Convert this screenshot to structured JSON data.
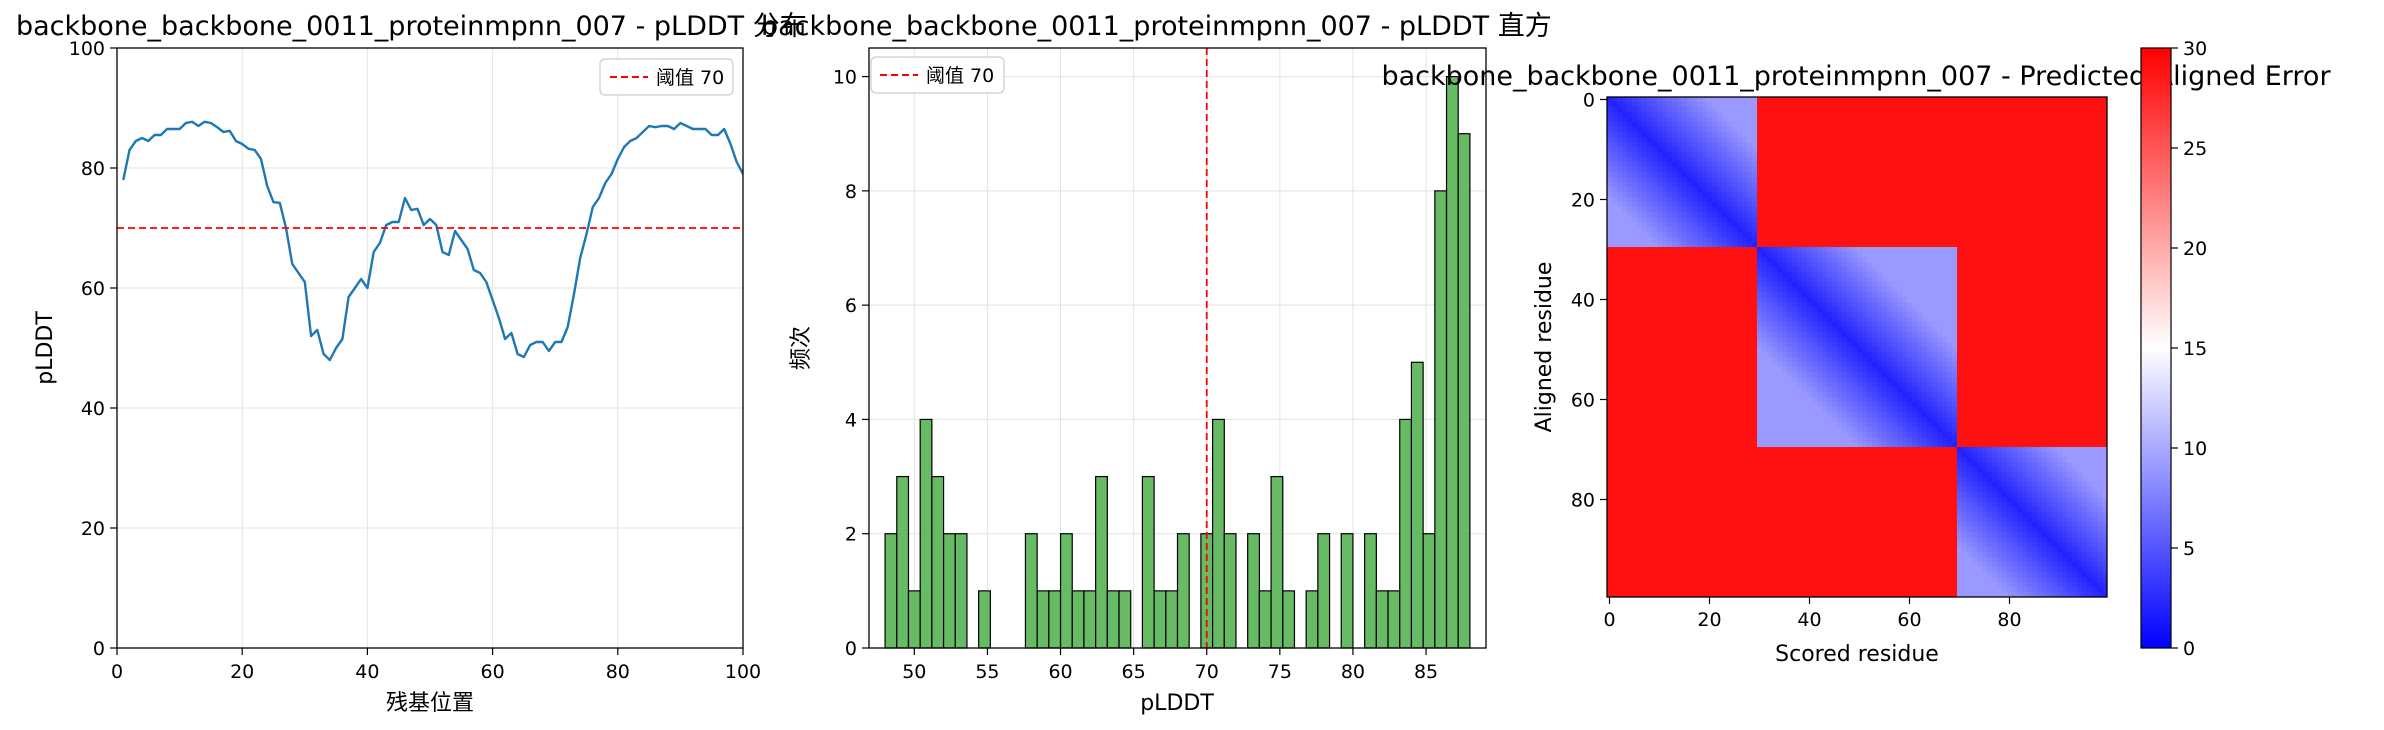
{
  "chart_data": [
    {
      "type": "line",
      "title": "backbone_backbone_0011_proteinmpnn_007 - pLDDT 分布",
      "xlabel": "残基位置",
      "ylabel": "pLDDT",
      "xlim": [
        0,
        100
      ],
      "ylim": [
        0,
        100
      ],
      "x_ticks": [
        0,
        20,
        40,
        60,
        80,
        100
      ],
      "y_ticks": [
        0,
        20,
        40,
        60,
        80,
        100
      ],
      "grid": true,
      "legend_position": "top-right",
      "series": [
        {
          "color": "#1f77b4",
          "x": [
            1,
            2,
            3,
            4,
            5,
            6,
            7,
            8,
            9,
            10,
            11,
            12,
            13,
            14,
            15,
            16,
            17,
            18,
            19,
            20,
            21,
            22,
            23,
            24,
            25,
            26,
            27,
            28,
            29,
            30,
            31,
            32,
            33,
            34,
            35,
            36,
            37,
            38,
            39,
            40,
            41,
            42,
            43,
            44,
            45,
            46,
            47,
            48,
            49,
            50,
            51,
            52,
            53,
            54,
            55,
            56,
            57,
            58,
            59,
            60,
            61,
            62,
            63,
            64,
            65,
            66,
            67,
            68,
            69,
            70,
            71,
            72,
            73,
            74,
            75,
            76,
            77,
            78,
            79,
            80,
            81,
            82,
            83,
            84,
            85,
            86,
            87,
            88,
            89,
            90,
            91,
            92,
            93,
            94,
            95,
            96,
            97,
            98,
            99,
            100
          ],
          "y": [
            78,
            83,
            84.5,
            85,
            84.5,
            85.5,
            85.5,
            86.5,
            86.5,
            86.5,
            87.5,
            87.7,
            87,
            87.7,
            87.5,
            86.8,
            86,
            86.2,
            84.5,
            84,
            83.2,
            83,
            81.5,
            77,
            74.3,
            74.2,
            70,
            64,
            62.5,
            61,
            52,
            53,
            49,
            48,
            50,
            51.5,
            58.5,
            60,
            61.5,
            60,
            66,
            67.5,
            70.5,
            71,
            71,
            75,
            73,
            73.2,
            70.5,
            71.5,
            70.5,
            66,
            65.5,
            69.5,
            68,
            66.5,
            63,
            62.5,
            61,
            58,
            55,
            51.5,
            52.5,
            49,
            48.5,
            50.5,
            51,
            51,
            49.5,
            51,
            51,
            53.5,
            59,
            65,
            69,
            73.5,
            75,
            77.5,
            79,
            81.5,
            83.5,
            84.5,
            85,
            86,
            87,
            86.8,
            87,
            87,
            86.5,
            87.5,
            87,
            86.5,
            86.5,
            86.5,
            85.5,
            85.5,
            86.5,
            84,
            81,
            79
          ]
        }
      ],
      "reference_line": {
        "y": 70,
        "label": "阈值 70",
        "color": "#ff0000"
      }
    },
    {
      "type": "bar",
      "title": "backbone_backbone_0011_proteinmpnn_007 - pLDDT 直方",
      "xlabel": "pLDDT",
      "ylabel": "频次",
      "xlim": [
        46.9,
        89.1
      ],
      "ylim": [
        0,
        10.5
      ],
      "x_ticks": [
        50,
        55,
        60,
        65,
        70,
        75,
        80,
        85
      ],
      "y_ticks": [
        0,
        2,
        4,
        6,
        8,
        10
      ],
      "grid": true,
      "legend_position": "top-left",
      "bar_color": "#4daf4a",
      "bins_start": [
        48,
        48.8,
        49.6,
        50.4,
        51.2,
        52,
        52.8,
        53.6,
        54.4,
        55.2,
        56,
        56.8,
        57.6,
        58.4,
        59.2,
        60,
        60.8,
        61.6,
        62.4,
        63.2,
        64,
        64.8,
        65.6,
        66.4,
        67.2,
        68,
        68.8,
        69.6,
        70.4,
        71.2,
        72,
        72.8,
        73.6,
        74.4,
        75.2,
        76,
        76.8,
        77.6,
        78.4,
        79.2,
        80,
        80.8,
        81.6,
        82.4,
        83.2,
        84,
        84.8,
        85.6,
        86.4,
        87.2
      ],
      "bin_width": 0.8,
      "values": [
        2,
        3,
        1,
        4,
        3,
        2,
        2,
        0,
        1,
        0,
        0,
        0,
        2,
        1,
        1,
        2,
        1,
        1,
        3,
        1,
        1,
        0,
        3,
        1,
        1,
        2,
        0,
        2,
        4,
        2,
        0,
        2,
        1,
        3,
        1,
        0,
        1,
        2,
        0,
        2,
        0,
        2,
        1,
        1,
        4,
        5,
        2,
        8,
        10,
        9
      ],
      "reference_line": {
        "x": 70,
        "label": "阈值 70",
        "color": "#ff0000"
      }
    },
    {
      "type": "heatmap",
      "title": "backbone_backbone_0011_proteinmpnn_007 - Predicted Aligned Error",
      "xlabel": "Scored residue",
      "ylabel": "Aligned residue",
      "xlim": [
        0,
        99
      ],
      "ylim": [
        99,
        0
      ],
      "x_ticks": [
        0,
        20,
        40,
        60,
        80
      ],
      "y_ticks": [
        0,
        20,
        40,
        60,
        80
      ],
      "colorbar": {
        "min": 0,
        "max": 30,
        "ticks": [
          0,
          5,
          10,
          15,
          20,
          25,
          30
        ],
        "colormap": "bwr"
      },
      "description_of_values": {
        "size": 100,
        "domains": [
          [
            0,
            30
          ],
          [
            30,
            70
          ],
          [
            70,
            100
          ]
        ],
        "within_domain_error": 2,
        "between_domain_error": 29
      }
    }
  ]
}
